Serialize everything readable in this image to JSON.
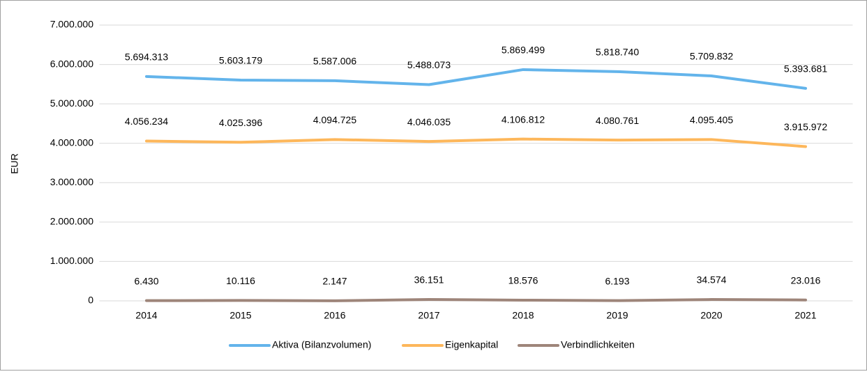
{
  "chart_data": {
    "type": "line",
    "y_label": "EUR",
    "categories": [
      "2014",
      "2015",
      "2016",
      "2017",
      "2018",
      "2019",
      "2020",
      "2021"
    ],
    "series": [
      {
        "name": "Aktiva (Bilanzvolumen)",
        "color": "#63b4eb",
        "values": [
          5694313,
          5603179,
          5587006,
          5488073,
          5869499,
          5818740,
          5709832,
          5393681
        ],
        "value_labels": [
          "5.694.313",
          "5.603.179",
          "5.587.006",
          "5.488.073",
          "5.869.499",
          "5.818.740",
          "5.709.832",
          "5.393.681"
        ]
      },
      {
        "name": "Eigenkapital",
        "color": "#fdb75b",
        "values": [
          4056234,
          4025396,
          4094725,
          4046035,
          4106812,
          4080761,
          4095405,
          3915972
        ],
        "value_labels": [
          "4.056.234",
          "4.025.396",
          "4.094.725",
          "4.046.035",
          "4.106.812",
          "4.080.761",
          "4.095.405",
          "3.915.972"
        ]
      },
      {
        "name": "Verbindlichkeiten",
        "color": "#9e857a",
        "values": [
          6430,
          10116,
          2147,
          36151,
          18576,
          6193,
          34574,
          23016
        ],
        "value_labels": [
          "6.430",
          "10.116",
          "2.147",
          "36.151",
          "18.576",
          "6.193",
          "34.574",
          "23.016"
        ]
      }
    ],
    "ylim": [
      0,
      7000000
    ],
    "yticks": [
      0,
      {
        "value": 1000000,
        "label": "1.000.000"
      },
      {
        "value": 2000000,
        "label": "2.000.000"
      },
      {
        "value": 3000000,
        "label": "3.000.000"
      },
      {
        "value": 4000000,
        "label": "4.000.000"
      },
      {
        "value": 5000000,
        "label": "5.000.000"
      },
      {
        "value": 6000000,
        "label": "6.000.000"
      },
      {
        "value": 7000000,
        "label": "7.000.000"
      }
    ],
    "grid": true,
    "legend": "bottom"
  }
}
